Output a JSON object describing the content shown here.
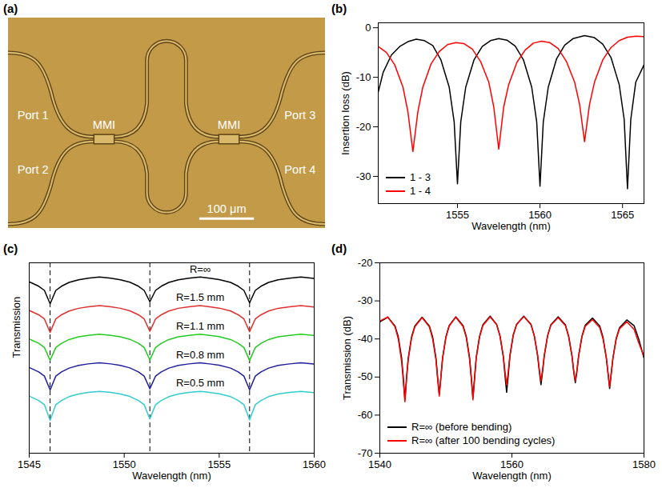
{
  "chart_data": [
    {
      "type": "micrograph",
      "title": "(a)",
      "labels": [
        "Port 1",
        "Port 2",
        "Port 3",
        "Port 4",
        "MMI",
        "MMI"
      ],
      "scale_bar": "100 μm"
    },
    {
      "type": "line",
      "title": "(b)",
      "x_label": "Wavelength (nm)",
      "y_label": "Insertion loss (dB)",
      "xlim": [
        1550.2,
        1566.3
      ],
      "xticks": [
        1555,
        1560,
        1565
      ],
      "ylim": [
        -35.5,
        1
      ],
      "yticks": [
        -30,
        -20,
        -10,
        0
      ],
      "legend": "lower left",
      "series": [
        {
          "name": "1 - 3",
          "color": "#000000",
          "x": [
            1550.2,
            1550.5,
            1551,
            1551.5,
            1552,
            1552.5,
            1553,
            1553.5,
            1554,
            1554.5,
            1554.8,
            1555,
            1555.2,
            1555.5,
            1556,
            1556.5,
            1557,
            1557.5,
            1558,
            1558.5,
            1559,
            1559.5,
            1559.8,
            1560,
            1560.2,
            1560.5,
            1561,
            1561.5,
            1562,
            1562.7,
            1563.3,
            1563.8,
            1564.3,
            1564.8,
            1565.1,
            1565.3,
            1565.5,
            1565.8,
            1566.3
          ],
          "values": [
            -13,
            -9,
            -5.5,
            -3.8,
            -2.8,
            -2.3,
            -2.6,
            -3.6,
            -6.5,
            -12,
            -19,
            -31.5,
            -19,
            -12,
            -6.5,
            -3.8,
            -2.6,
            -2.2,
            -2.5,
            -3.7,
            -6.5,
            -12,
            -19,
            -32,
            -19,
            -12,
            -6.3,
            -3.5,
            -2.2,
            -1.6,
            -2,
            -3.3,
            -6,
            -11.5,
            -18.5,
            -32.5,
            -18.5,
            -11,
            -7.5
          ]
        },
        {
          "name": "1 - 4",
          "color": "#ff0000",
          "x": [
            1550.2,
            1550.7,
            1551.2,
            1551.7,
            1552,
            1552.3,
            1552.6,
            1552.9,
            1553.4,
            1553.9,
            1554.4,
            1554.9,
            1555.4,
            1555.9,
            1556.4,
            1556.9,
            1557.2,
            1557.5,
            1557.8,
            1558.1,
            1558.6,
            1559.1,
            1559.6,
            1560.1,
            1560.6,
            1561.1,
            1561.6,
            1562.1,
            1562.4,
            1562.7,
            1563,
            1563.3,
            1563.8,
            1564.3,
            1564.8,
            1565.3,
            1565.8,
            1566.3
          ],
          "values": [
            -3.8,
            -5,
            -7.5,
            -12,
            -17,
            -25,
            -17,
            -12,
            -7.3,
            -4.8,
            -3.4,
            -3,
            -3.2,
            -4.3,
            -6.8,
            -11,
            -16,
            -24.5,
            -16,
            -11.5,
            -7,
            -4.5,
            -3.1,
            -2.7,
            -3,
            -4.2,
            -6.8,
            -11,
            -15.5,
            -23,
            -15.5,
            -11,
            -6.5,
            -4,
            -2.6,
            -1.9,
            -1.7,
            -1.8
          ]
        }
      ]
    },
    {
      "type": "line",
      "title": "(c)",
      "x_label": "Wavelength (nm)",
      "y_label": "Transmission",
      "xlim": [
        1545,
        1560
      ],
      "xticks": [
        1545,
        1550,
        1555,
        1560
      ],
      "ylim": [
        0,
        10
      ],
      "tick_labels": "x",
      "vlines": [
        1546.1,
        1551.35,
        1556.6
      ],
      "x": [
        1545,
        1545.5,
        1545.8,
        1546.1,
        1546.4,
        1546.7,
        1547.1,
        1547.6,
        1548.1,
        1548.7,
        1549.3,
        1549.8,
        1550.3,
        1550.75,
        1551.05,
        1551.35,
        1551.65,
        1551.95,
        1552.35,
        1552.85,
        1553.4,
        1554,
        1554.5,
        1555,
        1555.6,
        1556,
        1556.3,
        1556.6,
        1556.9,
        1557.2,
        1557.6,
        1558.1,
        1558.7,
        1559.3,
        1560
      ],
      "series": [
        {
          "name": "R=∞",
          "color": "#000000",
          "values": [
            9.0,
            8.77,
            8.55,
            7.85,
            8.55,
            8.77,
            8.97,
            9.11,
            9.19,
            9.25,
            9.19,
            9.11,
            8.98,
            8.77,
            8.55,
            7.95,
            8.55,
            8.77,
            8.97,
            9.11,
            9.19,
            9.25,
            9.19,
            9.12,
            8.97,
            8.77,
            8.55,
            7.9,
            8.55,
            8.77,
            8.97,
            9.11,
            9.19,
            9.25,
            9.18
          ]
        },
        {
          "name": "R=1.5 mm",
          "color": "#e03030",
          "values": [
            7.5,
            7.27,
            7.05,
            6.35,
            7.05,
            7.27,
            7.47,
            7.61,
            7.69,
            7.75,
            7.69,
            7.61,
            7.48,
            7.27,
            7.05,
            6.4,
            7.05,
            7.27,
            7.47,
            7.61,
            7.69,
            7.75,
            7.69,
            7.62,
            7.47,
            7.27,
            7.05,
            6.38,
            7.05,
            7.27,
            7.47,
            7.61,
            7.69,
            7.75,
            7.68
          ]
        },
        {
          "name": "R=1.1 mm",
          "color": "#22cc22",
          "values": [
            6.0,
            5.77,
            5.55,
            4.88,
            5.55,
            5.77,
            5.97,
            6.11,
            6.19,
            6.25,
            6.19,
            6.11,
            5.98,
            5.77,
            5.55,
            4.9,
            5.55,
            5.77,
            5.97,
            6.11,
            6.19,
            6.25,
            6.19,
            6.12,
            5.97,
            5.77,
            5.55,
            4.87,
            5.55,
            5.77,
            5.97,
            6.11,
            6.19,
            6.25,
            6.18
          ]
        },
        {
          "name": "R=0.8 mm",
          "color": "#2020a0",
          "values": [
            4.5,
            4.27,
            4.05,
            3.32,
            4.05,
            4.27,
            4.47,
            4.61,
            4.69,
            4.75,
            4.69,
            4.61,
            4.48,
            4.27,
            4.05,
            3.38,
            4.05,
            4.27,
            4.47,
            4.61,
            4.69,
            4.75,
            4.69,
            4.62,
            4.47,
            4.27,
            4.05,
            3.33,
            4.05,
            4.27,
            4.47,
            4.61,
            4.69,
            4.75,
            4.68
          ]
        },
        {
          "name": "R=0.5 mm",
          "color": "#33cccc",
          "values": [
            3.0,
            2.77,
            2.55,
            1.72,
            2.55,
            2.77,
            2.97,
            3.11,
            3.19,
            3.25,
            3.19,
            3.11,
            2.98,
            2.77,
            2.55,
            1.8,
            2.55,
            2.77,
            2.97,
            3.11,
            3.19,
            3.25,
            3.19,
            3.12,
            2.97,
            2.77,
            2.55,
            1.75,
            2.55,
            2.77,
            2.97,
            3.11,
            3.19,
            3.25,
            3.18
          ]
        }
      ]
    },
    {
      "type": "line",
      "title": "(d)",
      "x_label": "Wavelength (nm)",
      "y_label": "Transmission (dB)",
      "xlim": [
        1540,
        1580
      ],
      "xticks": [
        1540,
        1560,
        1580
      ],
      "ylim": [
        -70,
        -20
      ],
      "yticks": [
        -70,
        -60,
        -50,
        -40,
        -30,
        -20
      ],
      "legend": "lower left",
      "x": [
        1540,
        1541.2,
        1542.3,
        1542.8,
        1543.3,
        1543.55,
        1543.8,
        1544.05,
        1544.3,
        1544.8,
        1545.3,
        1546.4,
        1547.5,
        1548,
        1548.5,
        1548.75,
        1549,
        1549.25,
        1549.5,
        1550,
        1550.5,
        1551.5,
        1552.6,
        1553.1,
        1553.6,
        1553.85,
        1554.1,
        1554.35,
        1554.6,
        1555.1,
        1555.6,
        1556.7,
        1557.7,
        1558.2,
        1558.7,
        1558.95,
        1559.2,
        1559.45,
        1559.7,
        1560.2,
        1560.7,
        1561.8,
        1562.9,
        1563.4,
        1563.9,
        1564.15,
        1564.4,
        1564.65,
        1564.9,
        1565.4,
        1565.9,
        1567,
        1568.1,
        1568.6,
        1569.1,
        1569.35,
        1569.6,
        1569.85,
        1570.1,
        1570.6,
        1571.1,
        1572.2,
        1573.3,
        1573.8,
        1574.3,
        1574.55,
        1574.8,
        1575.05,
        1575.3,
        1575.8,
        1576.3,
        1577.4,
        1578.5,
        1579.2,
        1580
      ],
      "series": [
        {
          "name": "R=∞ (before bending)",
          "color": "#000000",
          "values": [
            -35.5,
            -34.3,
            -36.6,
            -39.5,
            -45,
            -50,
            -56,
            -50,
            -45,
            -39.5,
            -36.6,
            -34.3,
            -36.6,
            -39.5,
            -45,
            -50,
            -54.5,
            -50,
            -45,
            -39.5,
            -36.5,
            -34.2,
            -36.5,
            -39.4,
            -45,
            -50,
            -55.5,
            -50,
            -44.8,
            -39.3,
            -36.3,
            -34,
            -36.2,
            -39.2,
            -44.7,
            -49.5,
            -54,
            -49.5,
            -44.5,
            -39,
            -36.2,
            -34,
            -36.2,
            -39.2,
            -44.5,
            -48.5,
            -52,
            -48.5,
            -44.5,
            -39.2,
            -36.3,
            -34.2,
            -36.3,
            -39.3,
            -44.5,
            -48.5,
            -51.5,
            -48.5,
            -44.5,
            -39.3,
            -36.4,
            -34.5,
            -36.6,
            -39.6,
            -45,
            -49,
            -53,
            -49,
            -45,
            -39.8,
            -37,
            -35,
            -36.5,
            -40,
            -45
          ]
        },
        {
          "name": "R=∞ (after 100 bending cycles)",
          "color": "#ff0000",
          "values": [
            -35.3,
            -34.2,
            -36.8,
            -40,
            -46,
            -51,
            -56.5,
            -50.5,
            -45.5,
            -39.8,
            -36.8,
            -34.4,
            -36.8,
            -40,
            -45.5,
            -50.5,
            -55,
            -50,
            -45.2,
            -39.6,
            -36.6,
            -34.3,
            -36.7,
            -39.7,
            -45.5,
            -50.5,
            -56,
            -50.5,
            -45,
            -39.5,
            -36.5,
            -34.2,
            -36.3,
            -39.3,
            -44.5,
            -48.5,
            -52,
            -48.5,
            -44.3,
            -39,
            -36.3,
            -34.1,
            -36.3,
            -39.3,
            -44.3,
            -48,
            -51,
            -48,
            -44.3,
            -39.2,
            -36.4,
            -34.4,
            -36.5,
            -39.5,
            -44.5,
            -48.2,
            -51,
            -48.2,
            -44.5,
            -39.5,
            -36.7,
            -34.9,
            -37,
            -40,
            -45,
            -48.8,
            -52.5,
            -48.8,
            -45,
            -40,
            -37.3,
            -35.5,
            -37.5,
            -41,
            -44.5
          ]
        }
      ]
    }
  ]
}
